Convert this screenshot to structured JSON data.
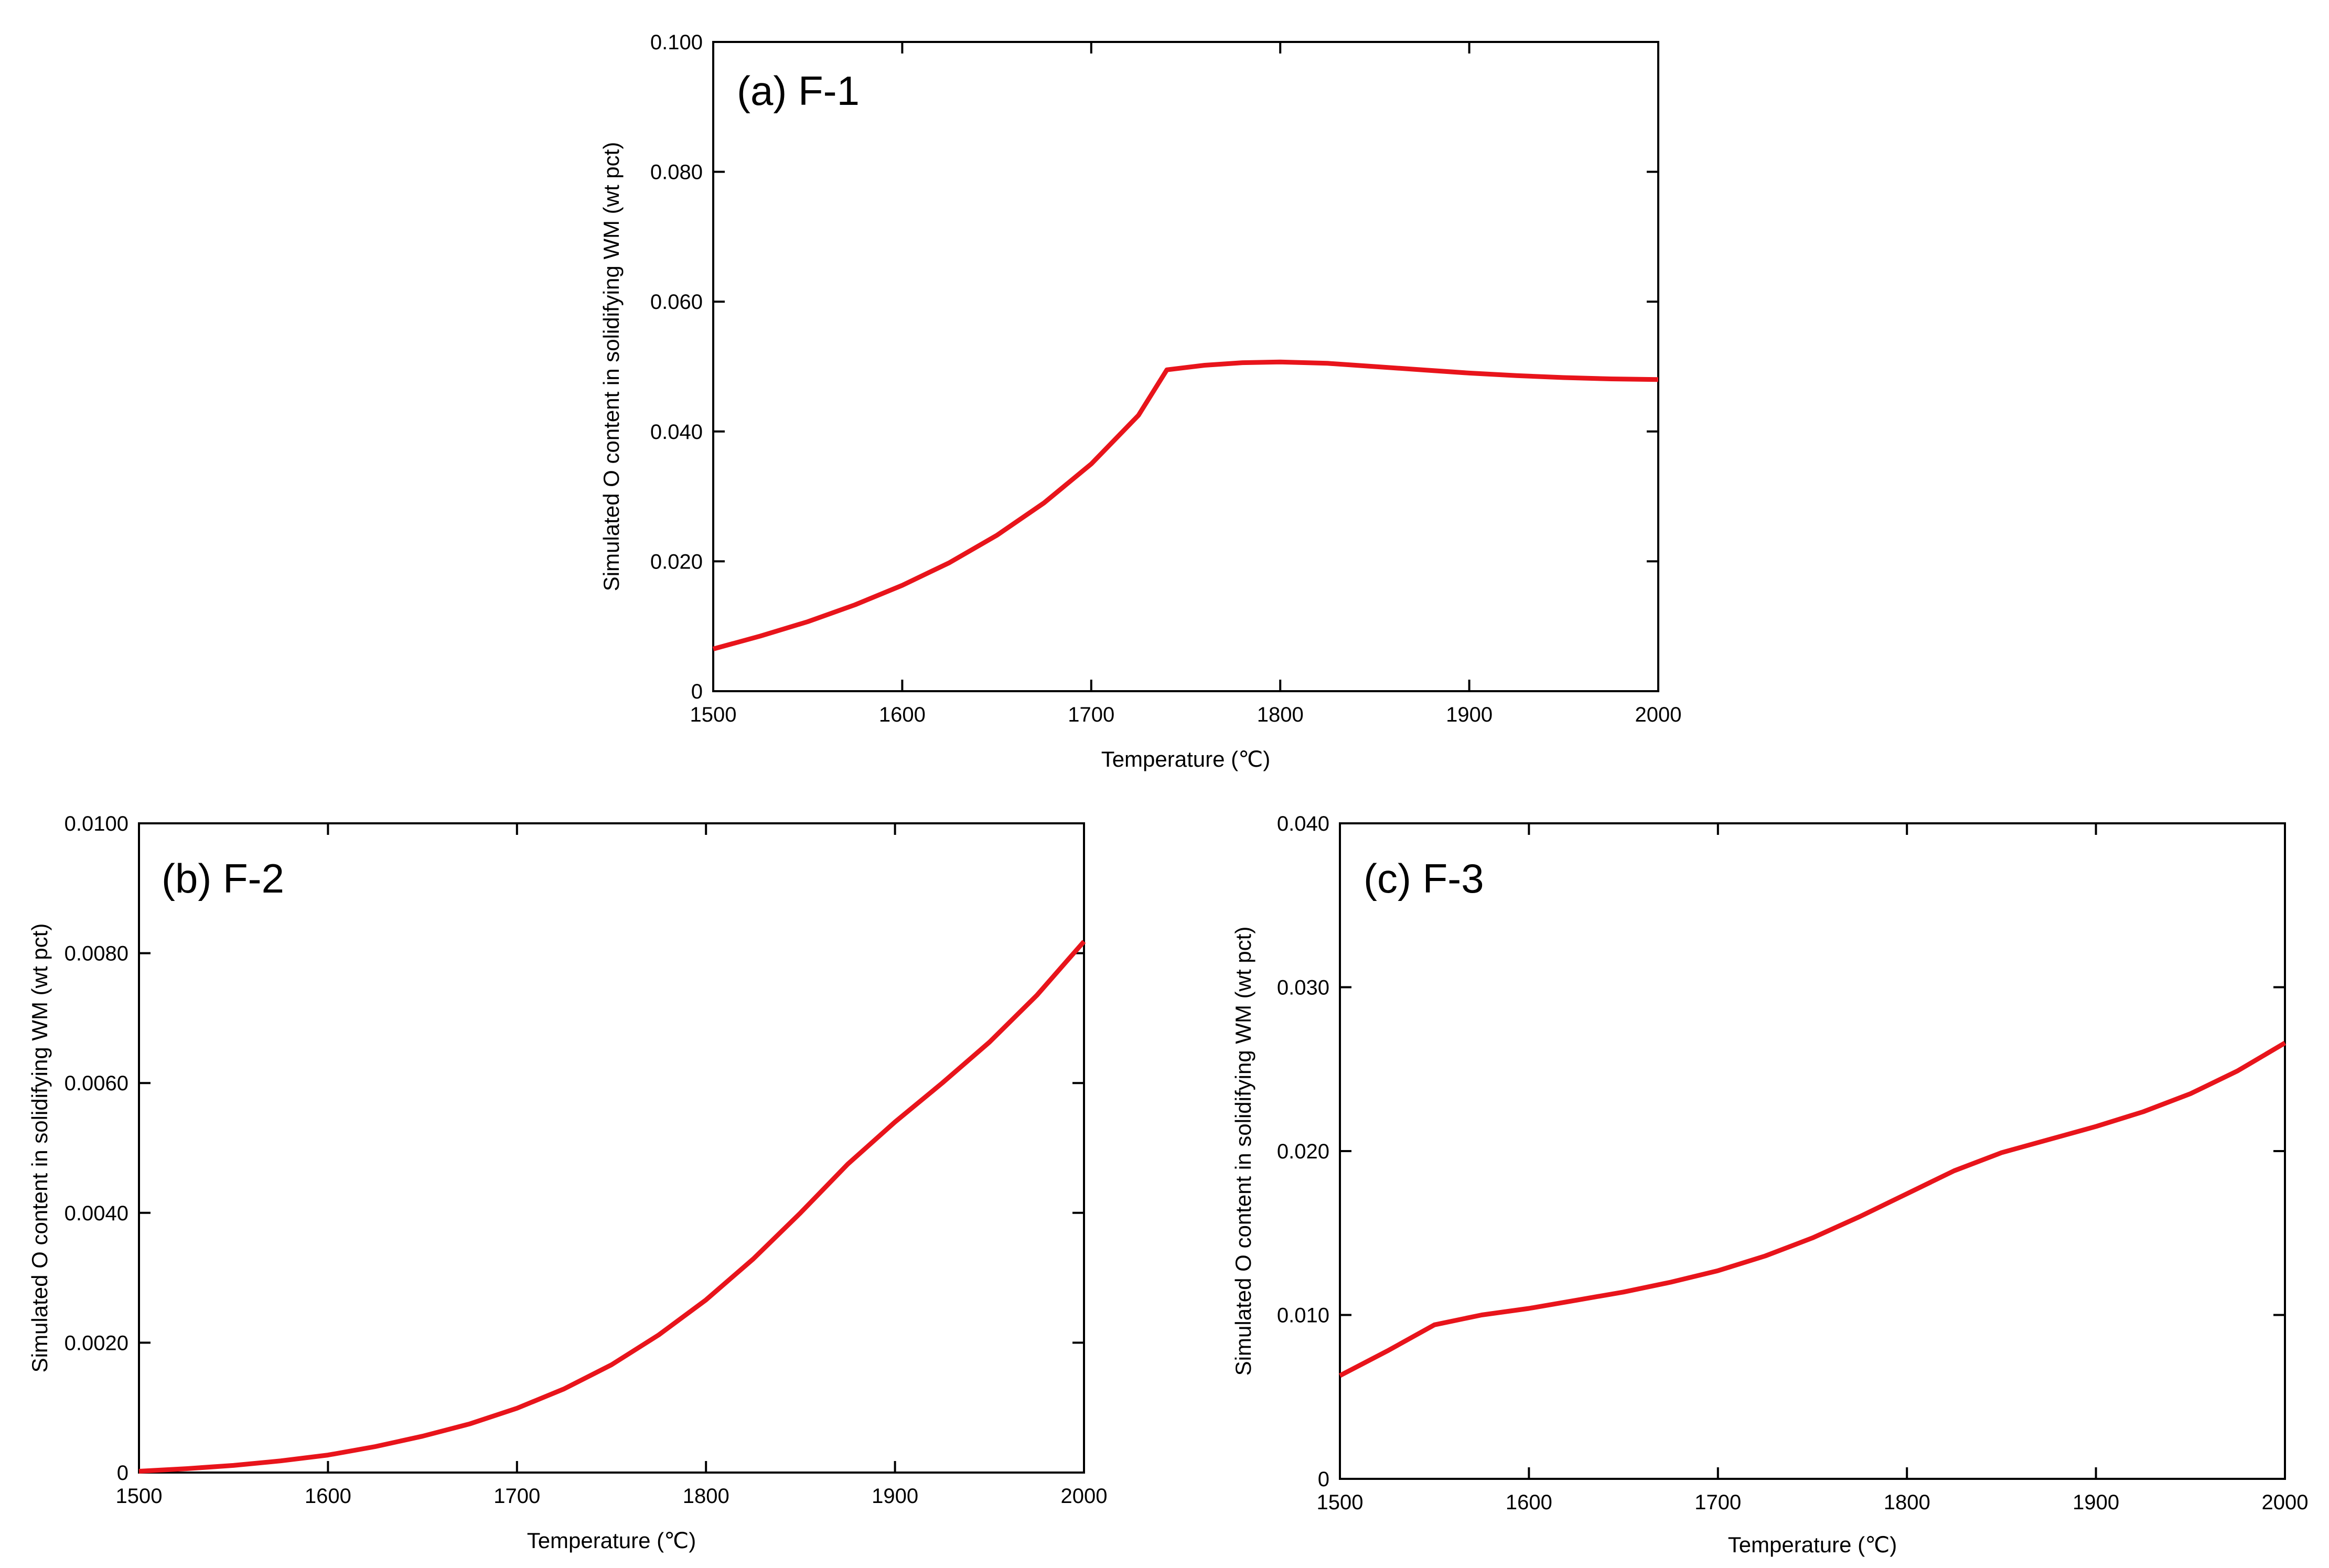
{
  "colors": {
    "series": "#e8141b",
    "axis": "#000000",
    "background": "#ffffff"
  },
  "chart_data": [
    {
      "id": "a",
      "type": "line",
      "title": "(a) F-1",
      "xlabel": "Temperature (℃)",
      "ylabel": "Simulated O content in solidifying WM (wt pct)",
      "xlim": [
        1500,
        2000
      ],
      "ylim": [
        0,
        0.1
      ],
      "grid": false,
      "x_ticks": [
        "1500",
        "1600",
        "1700",
        "1800",
        "1900",
        "2000"
      ],
      "y_ticks": [
        "0",
        "0.020",
        "0.040",
        "0.060",
        "0.080",
        "0.100"
      ],
      "series": [
        {
          "name": "F-1",
          "x": [
            1500,
            1525,
            1550,
            1575,
            1600,
            1625,
            1650,
            1675,
            1700,
            1725,
            1740,
            1760,
            1780,
            1800,
            1825,
            1850,
            1875,
            1900,
            1925,
            1950,
            1975,
            2000
          ],
          "y": [
            0.0065,
            0.0085,
            0.0107,
            0.0133,
            0.0163,
            0.0198,
            0.024,
            0.029,
            0.035,
            0.0425,
            0.0495,
            0.0502,
            0.0506,
            0.0507,
            0.0505,
            0.05,
            0.0495,
            0.049,
            0.0486,
            0.0483,
            0.0481,
            0.048
          ]
        }
      ]
    },
    {
      "id": "b",
      "type": "line",
      "title": "(b) F-2",
      "xlabel": "Temperature (℃)",
      "ylabel": "Simulated O content in solidifying WM (wt pct)",
      "xlim": [
        1500,
        2000
      ],
      "ylim": [
        0,
        0.01
      ],
      "grid": false,
      "x_ticks": [
        "1500",
        "1600",
        "1700",
        "1800",
        "1900",
        "2000"
      ],
      "y_ticks": [
        "0",
        "0.0020",
        "0.0040",
        "0.0060",
        "0.0080",
        "0.0100"
      ],
      "series": [
        {
          "name": "F-2",
          "x": [
            1500,
            1525,
            1550,
            1575,
            1600,
            1625,
            1650,
            1675,
            1700,
            1725,
            1750,
            1775,
            1800,
            1825,
            1850,
            1875,
            1900,
            1925,
            1950,
            1975,
            2000
          ],
          "y": [
            2e-05,
            6e-05,
            0.00011,
            0.00018,
            0.00027,
            0.0004,
            0.00056,
            0.00075,
            0.00099,
            0.00129,
            0.00166,
            0.00212,
            0.00266,
            0.00329,
            0.004,
            0.00475,
            0.0054,
            0.006,
            0.00663,
            0.00735,
            0.00818
          ]
        }
      ]
    },
    {
      "id": "c",
      "type": "line",
      "title": "(c) F-3",
      "xlabel": "Temperature (℃)",
      "ylabel": "Simulated O content in solidifying WM (wt pct)",
      "xlim": [
        1500,
        2000
      ],
      "ylim": [
        0,
        0.04
      ],
      "grid": false,
      "x_ticks": [
        "1500",
        "1600",
        "1700",
        "1800",
        "1900",
        "2000"
      ],
      "y_ticks": [
        "0",
        "0.010",
        "0.020",
        "0.030",
        "0.040"
      ],
      "series": [
        {
          "name": "F-3",
          "x": [
            1500,
            1525,
            1550,
            1575,
            1600,
            1625,
            1650,
            1675,
            1700,
            1725,
            1750,
            1775,
            1800,
            1825,
            1850,
            1875,
            1900,
            1925,
            1950,
            1975,
            2000
          ],
          "y": [
            0.0063,
            0.0078,
            0.0094,
            0.01,
            0.0104,
            0.0109,
            0.0114,
            0.012,
            0.0127,
            0.0136,
            0.0147,
            0.016,
            0.0174,
            0.0188,
            0.0199,
            0.0207,
            0.0215,
            0.0224,
            0.0235,
            0.0249,
            0.0266
          ]
        }
      ]
    }
  ]
}
